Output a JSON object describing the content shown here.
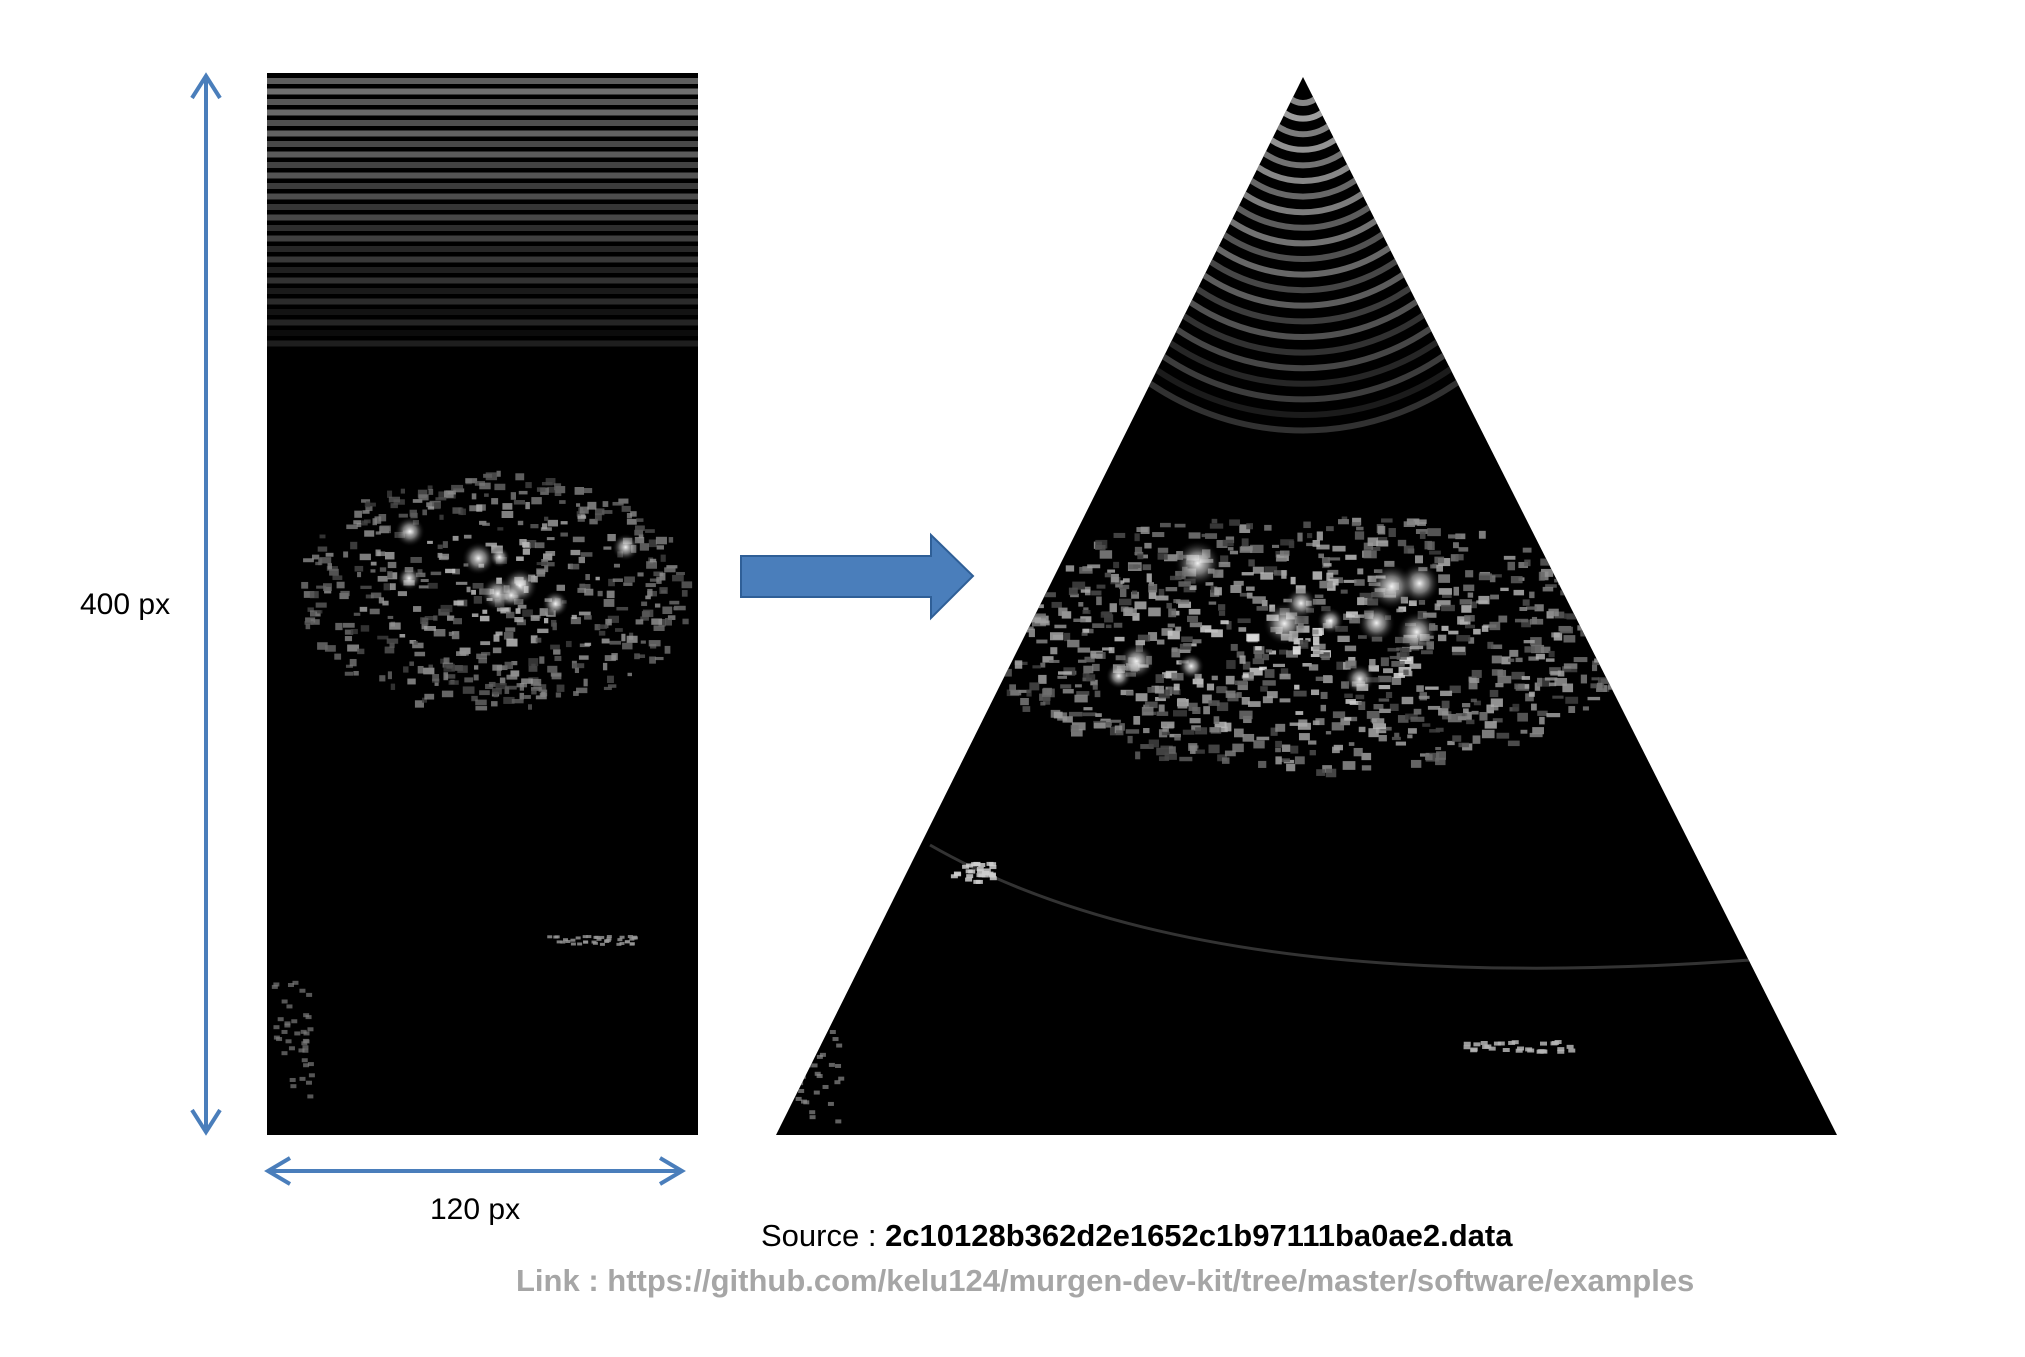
{
  "labels": {
    "height": "400 px",
    "width": "120 px"
  },
  "source": {
    "prefix": "Source : ",
    "filename": "2c10128b362d2e1652c1b97111ba0ae2.data"
  },
  "link": {
    "text": "Link : https://github.com/kelu124/murgen-dev-kit/tree/master/software/examples"
  },
  "colors": {
    "arrow": "#4a7ebb",
    "background": "#ffffff",
    "image_bg": "#000000",
    "link_text": "#a6a6a6"
  },
  "icons": {
    "transform_arrow": "right-arrow-icon",
    "dimension_arrows": "double-arrow-icon"
  }
}
